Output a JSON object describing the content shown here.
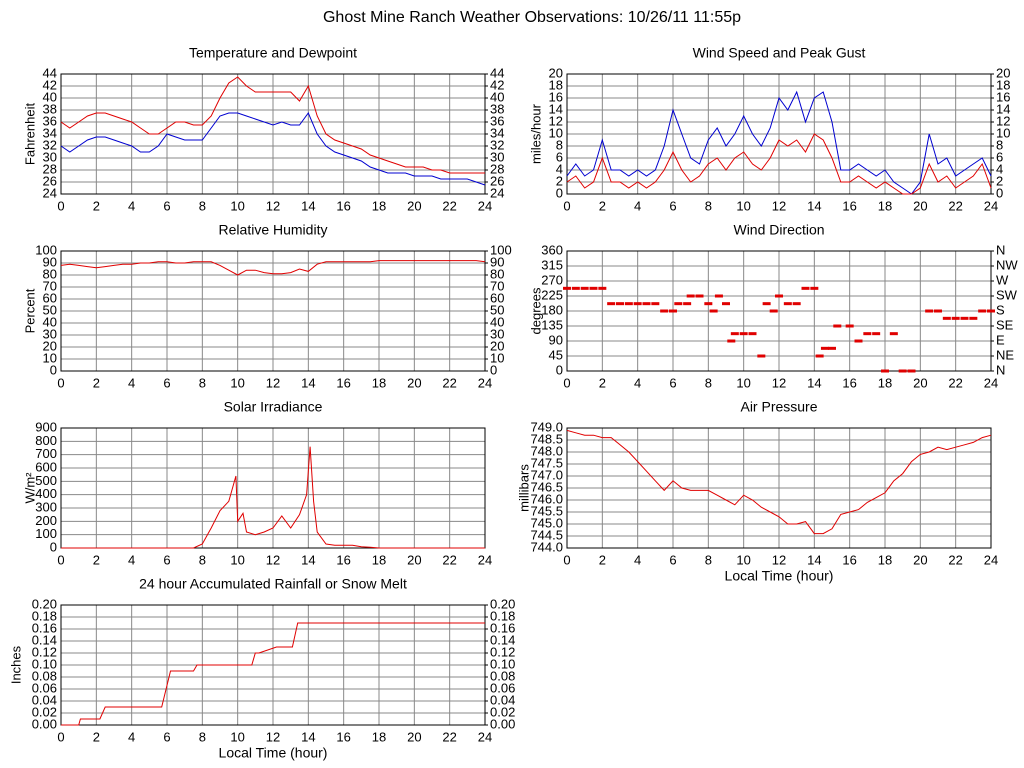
{
  "title": "Ghost Mine Ranch Weather Observations: 10/26/11 11:55p",
  "chart_data": [
    {
      "type": "line",
      "title": "Temperature and Dewpoint",
      "ylabel": "Fahrenheit",
      "x": [
        0,
        0.5,
        1,
        1.5,
        2,
        2.5,
        3,
        3.5,
        4,
        4.5,
        5,
        5.5,
        6,
        6.5,
        7,
        7.5,
        8,
        8.5,
        9,
        9.5,
        10,
        10.5,
        11,
        11.5,
        12,
        12.5,
        13,
        13.5,
        14,
        14.5,
        15,
        15.5,
        16,
        16.5,
        17,
        17.5,
        18,
        18.5,
        19,
        19.5,
        20,
        20.5,
        21,
        21.5,
        22,
        22.5,
        23,
        23.5,
        24
      ],
      "series": [
        {
          "color": "#e00000",
          "values": [
            36,
            35,
            36,
            37,
            37.5,
            37.5,
            37,
            36.5,
            36,
            35,
            34,
            34,
            35,
            36,
            36,
            35.5,
            35.5,
            37,
            40,
            42.5,
            43.5,
            42,
            41,
            41,
            41,
            41,
            41,
            39.5,
            42,
            37,
            34,
            33,
            32.5,
            32,
            31.5,
            30.5,
            30,
            29.5,
            29,
            28.5,
            28.5,
            28.5,
            28,
            28,
            27.5,
            27.5,
            27.5,
            27.5,
            27.5
          ]
        },
        {
          "color": "#0000d0",
          "values": [
            32,
            31,
            32,
            33,
            33.5,
            33.5,
            33,
            32.5,
            32,
            31,
            31,
            32,
            34,
            33.5,
            33,
            33,
            33,
            35,
            37,
            37.5,
            37.5,
            37,
            36.5,
            36,
            35.5,
            36,
            35.5,
            35.5,
            37.5,
            34,
            32,
            31,
            30.5,
            30,
            29.5,
            28.5,
            28,
            27.5,
            27.5,
            27.5,
            27,
            27,
            27,
            26.5,
            26.5,
            26.5,
            26.5,
            26,
            25.5
          ]
        }
      ],
      "xlim": [
        0,
        24
      ],
      "xticks": [
        0,
        2,
        4,
        6,
        8,
        10,
        12,
        14,
        16,
        18,
        20,
        22,
        24
      ],
      "ylim": [
        24,
        44
      ],
      "yticks": [
        24,
        26,
        28,
        30,
        32,
        34,
        36,
        38,
        40,
        42,
        44
      ],
      "y2lim": [
        24,
        44
      ],
      "y2ticks": [
        24,
        26,
        28,
        30,
        32,
        34,
        36,
        38,
        40,
        42,
        44
      ],
      "grid": true
    },
    {
      "type": "line",
      "title": "Wind Speed and Peak Gust",
      "ylabel": "miles/hour",
      "x": [
        0,
        0.5,
        1,
        1.5,
        2,
        2.5,
        3,
        3.5,
        4,
        4.5,
        5,
        5.5,
        6,
        6.5,
        7,
        7.5,
        8,
        8.5,
        9,
        9.5,
        10,
        10.5,
        11,
        11.5,
        12,
        12.5,
        13,
        13.5,
        14,
        14.5,
        15,
        15.5,
        16,
        16.5,
        17,
        17.5,
        18,
        18.5,
        19,
        19.5,
        20,
        20.5,
        21,
        21.5,
        22,
        22.5,
        23,
        23.5,
        24
      ],
      "series": [
        {
          "color": "#0000d0",
          "values": [
            3,
            5,
            3,
            4,
            9,
            4,
            4,
            3,
            4,
            3,
            4,
            8,
            14,
            10,
            6,
            5,
            9,
            11,
            8,
            10,
            13,
            10,
            8,
            11,
            16,
            14,
            17,
            12,
            16,
            17,
            12,
            4,
            4,
            5,
            4,
            3,
            4,
            2,
            1,
            0,
            2,
            10,
            5,
            6,
            3,
            4,
            5,
            6,
            3
          ]
        },
        {
          "color": "#e00000",
          "values": [
            2,
            3,
            1,
            2,
            6,
            2,
            2,
            1,
            2,
            1,
            2,
            4,
            7,
            4,
            2,
            3,
            5,
            6,
            4,
            6,
            7,
            5,
            4,
            6,
            9,
            8,
            9,
            7,
            10,
            9,
            6,
            2,
            2,
            3,
            2,
            1,
            2,
            1,
            0,
            0,
            1,
            5,
            2,
            3,
            1,
            2,
            3,
            5,
            1
          ]
        }
      ],
      "xlim": [
        0,
        24
      ],
      "xticks": [
        0,
        2,
        4,
        6,
        8,
        10,
        12,
        14,
        16,
        18,
        20,
        22,
        24
      ],
      "ylim": [
        0,
        20
      ],
      "yticks": [
        0,
        2,
        4,
        6,
        8,
        10,
        12,
        14,
        16,
        18,
        20
      ],
      "y2lim": [
        0,
        20
      ],
      "y2ticks": [
        0,
        2,
        4,
        6,
        8,
        10,
        12,
        14,
        16,
        18,
        20
      ],
      "grid": true
    },
    {
      "type": "line",
      "title": "Relative Humidity",
      "ylabel": "Percent",
      "x": [
        0,
        0.5,
        1,
        1.5,
        2,
        2.5,
        3,
        3.5,
        4,
        4.5,
        5,
        5.5,
        6,
        6.5,
        7,
        7.5,
        8,
        8.5,
        9,
        9.5,
        10,
        10.5,
        11,
        11.5,
        12,
        12.5,
        13,
        13.5,
        14,
        14.5,
        15,
        15.5,
        16,
        16.5,
        17,
        17.5,
        18,
        18.5,
        19,
        19.5,
        20,
        20.5,
        21,
        21.5,
        22,
        22.5,
        23,
        23.5,
        24
      ],
      "series": [
        {
          "color": "#e00000",
          "values": [
            88,
            89,
            88,
            87,
            86,
            87,
            88,
            89,
            89,
            90,
            90,
            91,
            91,
            90,
            90,
            91,
            91,
            91,
            88,
            84,
            80,
            84,
            84,
            82,
            81,
            81,
            82,
            85,
            83,
            89,
            91,
            91,
            91,
            91,
            91,
            91,
            92,
            92,
            92,
            92,
            92,
            92,
            92,
            92,
            92,
            92,
            92,
            92,
            91
          ]
        }
      ],
      "xlim": [
        0,
        24
      ],
      "xticks": [
        0,
        2,
        4,
        6,
        8,
        10,
        12,
        14,
        16,
        18,
        20,
        22,
        24
      ],
      "ylim": [
        0,
        100
      ],
      "yticks": [
        0,
        10,
        20,
        30,
        40,
        50,
        60,
        70,
        80,
        90,
        100
      ],
      "y2lim": [
        0,
        100
      ],
      "y2ticks": [
        0,
        10,
        20,
        30,
        40,
        50,
        60,
        70,
        80,
        90,
        100
      ],
      "grid": true
    },
    {
      "type": "scatter",
      "title": "Wind Direction",
      "ylabel": "degrees",
      "color": "#e00000",
      "x": [
        0,
        0.5,
        1,
        1.5,
        2,
        2.5,
        3,
        3.5,
        4,
        4.5,
        5,
        5.5,
        6,
        6.3,
        6.8,
        7,
        7.5,
        8,
        8.3,
        8.6,
        9,
        9.3,
        9.5,
        10,
        10.5,
        11,
        11.3,
        11.7,
        12,
        12.5,
        13,
        13.5,
        14,
        14.3,
        14.6,
        15,
        15.3,
        16,
        16.5,
        17,
        17.5,
        18,
        18.5,
        19,
        19.5,
        20.5,
        21,
        21.5,
        22,
        22.5,
        23,
        23.5,
        24
      ],
      "values": [
        248,
        248,
        248,
        248,
        248,
        202,
        202,
        202,
        202,
        202,
        202,
        180,
        180,
        202,
        202,
        225,
        225,
        202,
        180,
        225,
        202,
        90,
        112,
        112,
        112,
        45,
        202,
        180,
        225,
        202,
        202,
        248,
        248,
        45,
        68,
        68,
        135,
        135,
        90,
        112,
        112,
        0,
        112,
        0,
        0,
        180,
        180,
        158,
        158,
        158,
        158,
        180,
        180
      ],
      "xlim": [
        0,
        24
      ],
      "xticks": [
        0,
        2,
        4,
        6,
        8,
        10,
        12,
        14,
        16,
        18,
        20,
        22,
        24
      ],
      "ylim": [
        0,
        360
      ],
      "yticks": [
        0,
        45,
        90,
        135,
        180,
        225,
        270,
        315,
        360
      ],
      "y2lim": [
        0,
        360
      ],
      "y2ticks": [
        {
          "value": 0,
          "label": "N"
        },
        {
          "value": 45,
          "label": "NE"
        },
        {
          "value": 90,
          "label": "E"
        },
        {
          "value": 135,
          "label": "SE"
        },
        {
          "value": 180,
          "label": "S"
        },
        {
          "value": 225,
          "label": "SW"
        },
        {
          "value": 270,
          "label": "W"
        },
        {
          "value": 315,
          "label": "NW"
        },
        {
          "value": 360,
          "label": "N"
        }
      ],
      "grid": true
    },
    {
      "type": "line",
      "title": "Solar Irradiance",
      "ylabel": "W/m²",
      "x": [
        0,
        7.5,
        8,
        8.5,
        9,
        9.5,
        9.9,
        10,
        10.3,
        10.5,
        11,
        11.5,
        12,
        12.5,
        13,
        13.5,
        13.9,
        14.1,
        14.3,
        14.5,
        15,
        15.5,
        16,
        16.5,
        17,
        17.5,
        18,
        24
      ],
      "series": [
        {
          "color": "#e00000",
          "values": [
            0,
            0,
            30,
            150,
            280,
            350,
            540,
            200,
            260,
            120,
            100,
            120,
            150,
            240,
            150,
            250,
            400,
            760,
            350,
            120,
            30,
            20,
            20,
            20,
            10,
            5,
            0,
            0
          ]
        }
      ],
      "xlim": [
        0,
        24
      ],
      "xticks": [
        0,
        2,
        4,
        6,
        8,
        10,
        12,
        14,
        16,
        18,
        20,
        22,
        24
      ],
      "ylim": [
        0,
        900
      ],
      "yticks": [
        0,
        100,
        200,
        300,
        400,
        500,
        600,
        700,
        800,
        900
      ],
      "grid": true
    },
    {
      "type": "line",
      "title": "Air Pressure",
      "ylabel": "millibars",
      "xlabel": "Local Time (hour)",
      "x": [
        0,
        0.5,
        1,
        1.5,
        2,
        2.5,
        3,
        3.5,
        4,
        4.5,
        5,
        5.5,
        6,
        6.5,
        7,
        7.5,
        8,
        8.5,
        9,
        9.5,
        10,
        10.5,
        11,
        11.5,
        12,
        12.5,
        13,
        13.5,
        14,
        14.5,
        15,
        15.5,
        16,
        16.5,
        17,
        17.5,
        18,
        18.5,
        19,
        19.5,
        20,
        20.5,
        21,
        21.5,
        22,
        22.5,
        23,
        23.5,
        24
      ],
      "series": [
        {
          "color": "#e00000",
          "values": [
            748.9,
            748.8,
            748.7,
            748.7,
            748.6,
            748.6,
            748.3,
            748,
            747.6,
            747.2,
            746.8,
            746.4,
            746.8,
            746.5,
            746.4,
            746.4,
            746.4,
            746.2,
            746,
            745.8,
            746.2,
            746,
            745.7,
            745.5,
            745.3,
            745,
            745,
            745.1,
            744.6,
            744.6,
            744.8,
            745.4,
            745.5,
            745.6,
            745.9,
            746.1,
            746.3,
            746.8,
            747.1,
            747.6,
            747.9,
            748,
            748.2,
            748.1,
            748.2,
            748.3,
            748.4,
            748.6,
            748.7
          ]
        }
      ],
      "xlim": [
        0,
        24
      ],
      "xticks": [
        0,
        2,
        4,
        6,
        8,
        10,
        12,
        14,
        16,
        18,
        20,
        22,
        24
      ],
      "ylim": [
        744,
        749
      ],
      "yticks": [
        {
          "value": 744,
          "label": "744.0"
        },
        744.5,
        {
          "value": 745,
          "label": "745.0"
        },
        745.5,
        {
          "value": 746,
          "label": "746.0"
        },
        746.5,
        {
          "value": 747,
          "label": "747.0"
        },
        747.5,
        {
          "value": 748,
          "label": "748.0"
        },
        748.5,
        {
          "value": 749,
          "label": "749.0"
        }
      ],
      "grid": true
    },
    {
      "type": "line",
      "title": "24 hour Accumulated Rainfall or Snow Melt",
      "ylabel": "Inches",
      "xlabel": "Local Time (hour)",
      "x": [
        0,
        1,
        1.1,
        2.2,
        2.5,
        5.7,
        6.2,
        7.5,
        7.7,
        10.8,
        11,
        11.2,
        12.2,
        12.4,
        13.1,
        13.4,
        24
      ],
      "series": [
        {
          "color": "#e00000",
          "values": [
            0,
            0,
            0.01,
            0.01,
            0.03,
            0.03,
            0.09,
            0.09,
            0.1,
            0.1,
            0.12,
            0.12,
            0.13,
            0.13,
            0.13,
            0.17,
            0.17
          ]
        }
      ],
      "xlim": [
        0,
        24
      ],
      "xticks": [
        0,
        2,
        4,
        6,
        8,
        10,
        12,
        14,
        16,
        18,
        20,
        22,
        24
      ],
      "ylim": [
        0,
        0.2
      ],
      "yticks": [
        {
          "value": 0,
          "label": "0.00"
        },
        0.02,
        0.04,
        0.06,
        0.08,
        {
          "value": 0.1,
          "label": "0.10"
        },
        0.12,
        0.14,
        0.16,
        0.18,
        {
          "value": 0.2,
          "label": "0.20"
        }
      ],
      "y2lim": [
        0,
        0.2
      ],
      "y2ticks": [
        {
          "value": 0,
          "label": "0.00"
        },
        0.02,
        0.04,
        0.06,
        0.08,
        {
          "value": 0.1,
          "label": "0.10"
        },
        0.12,
        0.14,
        0.16,
        0.18,
        {
          "value": 0.2,
          "label": "0.20"
        }
      ],
      "grid": true
    }
  ]
}
